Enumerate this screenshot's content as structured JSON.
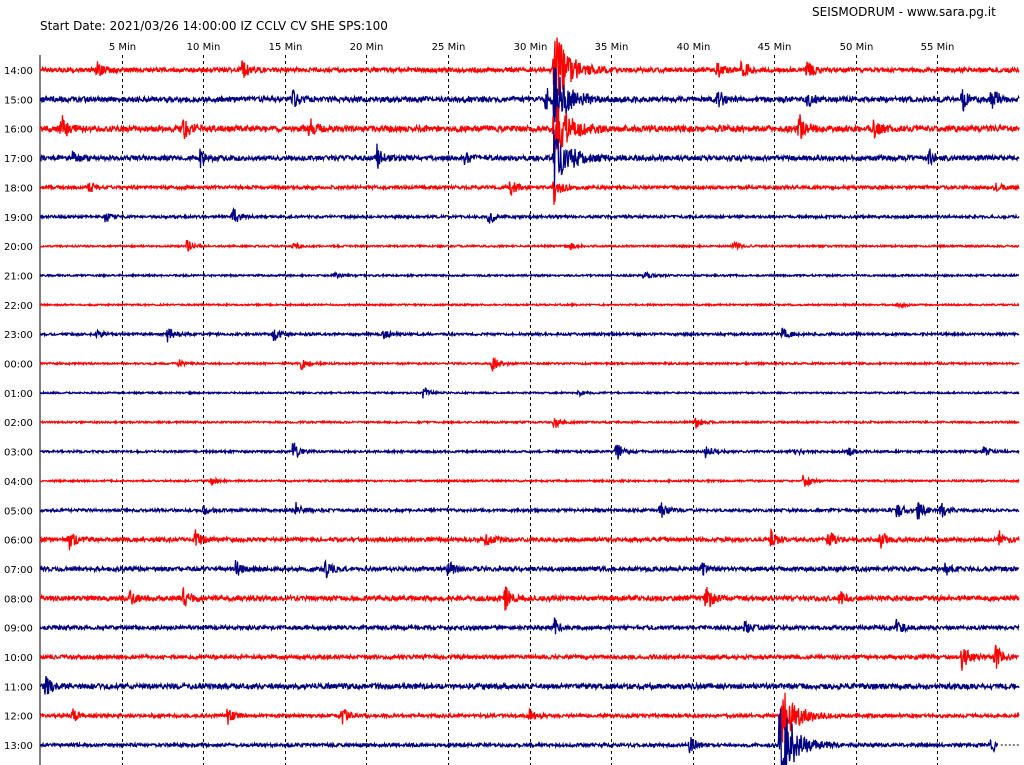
{
  "header": {
    "start_info": "Start Date: 2021/03/26 14:00:00 IZ CCLV CV SHE SPS:100",
    "source": "SEISMODRUM - www.sara.pg.it"
  },
  "chart_data": {
    "type": "line",
    "title": "",
    "xlabel": "",
    "ylabel": "",
    "x_unit": "Min",
    "xlim": [
      0,
      60
    ],
    "x_ticks": [
      5,
      10,
      15,
      20,
      25,
      30,
      35,
      40,
      45,
      50,
      55
    ],
    "x_tick_labels": [
      "5 Min",
      "10 Min",
      "15 Min",
      "20 Min",
      "25 Min",
      "30 Min",
      "35 Min",
      "40 Min",
      "45 Min",
      "50 Min",
      "55 Min"
    ],
    "grid": "vertical-dashed",
    "colors": {
      "odd_traces": "#ff0000",
      "even_traces": "#000080",
      "grid": "#000000"
    },
    "traces": [
      {
        "hour": "14:00",
        "color": "#ff0000",
        "noise": 2.2,
        "events": [
          [
            3.5,
            8
          ],
          [
            12.3,
            12
          ],
          [
            31.5,
            38
          ],
          [
            41.5,
            8
          ],
          [
            43,
            10
          ],
          [
            47,
            9
          ]
        ]
      },
      {
        "hour": "15:00",
        "color": "#000080",
        "noise": 2.6,
        "events": [
          [
            15.5,
            8
          ],
          [
            31,
            12
          ],
          [
            31.5,
            30
          ],
          [
            41.5,
            10
          ],
          [
            47,
            8
          ],
          [
            56.5,
            14
          ],
          [
            58.3,
            14
          ]
        ]
      },
      {
        "hour": "16:00",
        "color": "#ff0000",
        "noise": 3.0,
        "events": [
          [
            1.3,
            14
          ],
          [
            8.8,
            12
          ],
          [
            16.5,
            10
          ],
          [
            31.5,
            30
          ],
          [
            46.5,
            16
          ],
          [
            51,
            9
          ]
        ]
      },
      {
        "hour": "17:00",
        "color": "#000080",
        "noise": 2.4,
        "events": [
          [
            2,
            6
          ],
          [
            9.8,
            9
          ],
          [
            20.6,
            14
          ],
          [
            26,
            6
          ],
          [
            31.5,
            30
          ],
          [
            54.5,
            8
          ]
        ]
      },
      {
        "hour": "18:00",
        "color": "#ff0000",
        "noise": 1.6,
        "events": [
          [
            3,
            6
          ],
          [
            28.8,
            9
          ],
          [
            31.5,
            18
          ],
          [
            58.5,
            6
          ]
        ]
      },
      {
        "hour": "19:00",
        "color": "#000080",
        "noise": 1.3,
        "events": [
          [
            4,
            5
          ],
          [
            11.8,
            10
          ],
          [
            27.5,
            8
          ]
        ]
      },
      {
        "hour": "20:00",
        "color": "#ff0000",
        "noise": 0.9,
        "events": [
          [
            9,
            6
          ],
          [
            15.5,
            4
          ],
          [
            32.5,
            3
          ],
          [
            42.5,
            4
          ]
        ]
      },
      {
        "hour": "21:00",
        "color": "#000080",
        "noise": 0.9,
        "events": [
          [
            18,
            3
          ],
          [
            37,
            4
          ]
        ]
      },
      {
        "hour": "22:00",
        "color": "#ff0000",
        "noise": 0.8,
        "events": [
          [
            52.5,
            4
          ]
        ]
      },
      {
        "hour": "23:00",
        "color": "#000080",
        "noise": 1.2,
        "events": [
          [
            3.5,
            4
          ],
          [
            7.8,
            8
          ],
          [
            14.3,
            9
          ],
          [
            21,
            5
          ],
          [
            45.5,
            8
          ]
        ]
      },
      {
        "hour": "00:00",
        "color": "#ff0000",
        "noise": 0.9,
        "events": [
          [
            8.5,
            4
          ],
          [
            16,
            7
          ],
          [
            27.7,
            9
          ]
        ]
      },
      {
        "hour": "01:00",
        "color": "#000080",
        "noise": 0.8,
        "events": [
          [
            23.5,
            6
          ],
          [
            33,
            3
          ]
        ]
      },
      {
        "hour": "02:00",
        "color": "#ff0000",
        "noise": 0.9,
        "events": [
          [
            31.5,
            7
          ],
          [
            40.2,
            6
          ]
        ]
      },
      {
        "hour": "03:00",
        "color": "#000080",
        "noise": 1.1,
        "events": [
          [
            15.5,
            11
          ],
          [
            35.3,
            10
          ],
          [
            40.8,
            7
          ],
          [
            46.2,
            4
          ],
          [
            49.5,
            5
          ],
          [
            57.8,
            8
          ]
        ]
      },
      {
        "hour": "04:00",
        "color": "#ff0000",
        "noise": 0.9,
        "events": [
          [
            10.5,
            4
          ],
          [
            46.8,
            8
          ]
        ]
      },
      {
        "hour": "05:00",
        "color": "#000080",
        "noise": 1.4,
        "events": [
          [
            10,
            5
          ],
          [
            15.7,
            8
          ],
          [
            38,
            9
          ],
          [
            52.5,
            10
          ],
          [
            53.8,
            10
          ],
          [
            55.2,
            8
          ]
        ]
      },
      {
        "hour": "06:00",
        "color": "#ff0000",
        "noise": 2.0,
        "events": [
          [
            1.8,
            9
          ],
          [
            9.5,
            10
          ],
          [
            27.3,
            7
          ],
          [
            44.8,
            9
          ],
          [
            48.3,
            10
          ],
          [
            51.5,
            9
          ],
          [
            58.8,
            8
          ]
        ]
      },
      {
        "hour": "07:00",
        "color": "#000080",
        "noise": 2.1,
        "events": [
          [
            12,
            9
          ],
          [
            17.5,
            8
          ],
          [
            25,
            8
          ],
          [
            40.5,
            7
          ],
          [
            55.5,
            6
          ]
        ]
      },
      {
        "hour": "08:00",
        "color": "#ff0000",
        "noise": 2.4,
        "events": [
          [
            5.5,
            7
          ],
          [
            8.8,
            9
          ],
          [
            28.5,
            12
          ],
          [
            40.8,
            14
          ],
          [
            49,
            6
          ]
        ]
      },
      {
        "hour": "09:00",
        "color": "#000080",
        "noise": 1.9,
        "events": [
          [
            31.5,
            10
          ],
          [
            43.2,
            6
          ],
          [
            52.5,
            7
          ]
        ]
      },
      {
        "hour": "10:00",
        "color": "#ff0000",
        "noise": 1.9,
        "events": [
          [
            56.5,
            14
          ],
          [
            58.5,
            18
          ]
        ]
      },
      {
        "hour": "11:00",
        "color": "#000080",
        "noise": 2.6,
        "events": [
          [
            0.3,
            10
          ]
        ]
      },
      {
        "hour": "12:00",
        "color": "#ff0000",
        "noise": 1.7,
        "events": [
          [
            2,
            7
          ],
          [
            11.5,
            8
          ],
          [
            18.5,
            9
          ],
          [
            30,
            5
          ],
          [
            45.5,
            26
          ]
        ]
      },
      {
        "hour": "13:00",
        "color": "#000080",
        "noise": 1.6,
        "events": [
          [
            39.8,
            9
          ],
          [
            45.3,
            48
          ],
          [
            58.3,
            8
          ]
        ],
        "end_min": 58.7
      }
    ]
  }
}
